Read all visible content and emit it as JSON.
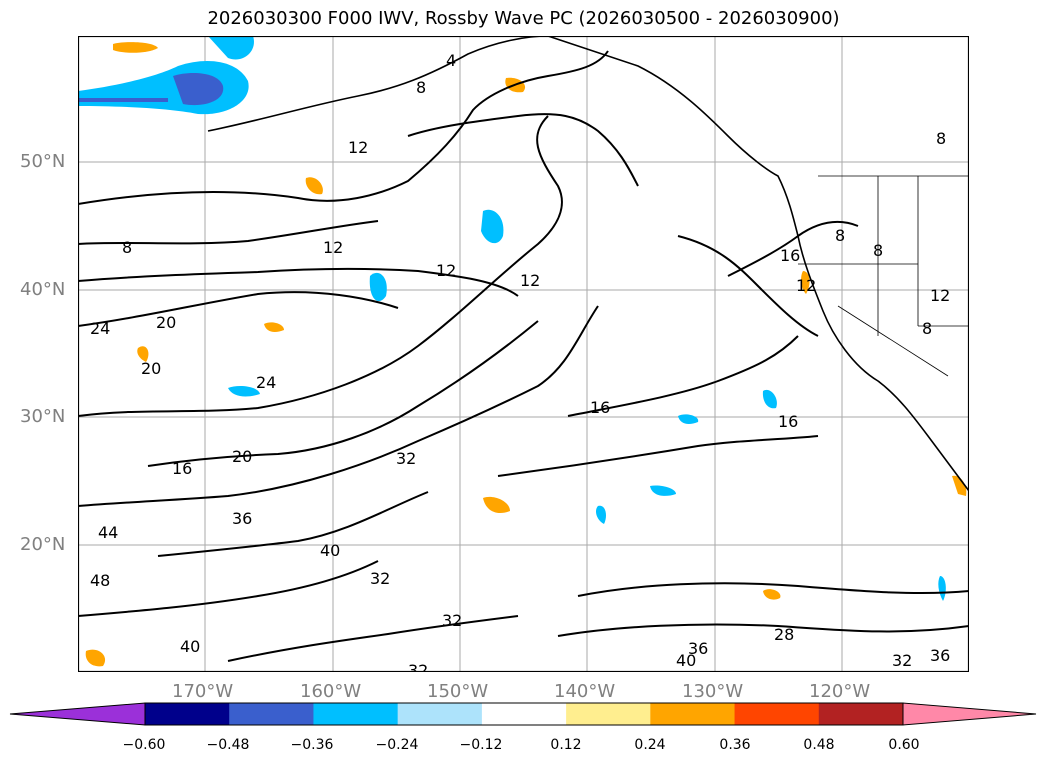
{
  "title": "2026030300 F000 IWV, Rossby Wave PC (2026030500 - 2026030900)",
  "latitude_labels": [
    "50°N",
    "40°N",
    "30°N",
    "20°N"
  ],
  "longitude_labels": [
    "170°W",
    "160°W",
    "150°W",
    "140°W",
    "130°W",
    "120°W"
  ],
  "contour_labels": [
    "4",
    "8",
    "12",
    "8",
    "12",
    "12",
    "12",
    "8",
    "8",
    "16",
    "8",
    "12",
    "12",
    "8",
    "20",
    "20",
    "24",
    "24",
    "16",
    "20",
    "32",
    "16",
    "16",
    "36",
    "44",
    "40",
    "48",
    "32",
    "32",
    "40",
    "32",
    "28",
    "36",
    "40",
    "32",
    "36"
  ],
  "colorbar": {
    "ticks": [
      "−0.60",
      "−0.48",
      "−0.36",
      "−0.24",
      "−0.12",
      "0.12",
      "0.24",
      "0.36",
      "0.48",
      "0.60"
    ],
    "colors": [
      "#9b30d9",
      "#00008b",
      "#3a5fcd",
      "#00bfff",
      "#ade3fb",
      "#ffffff",
      "#ffee8f",
      "#ffa500",
      "#ff4500",
      "#b22222",
      "#ff88a8"
    ]
  }
}
